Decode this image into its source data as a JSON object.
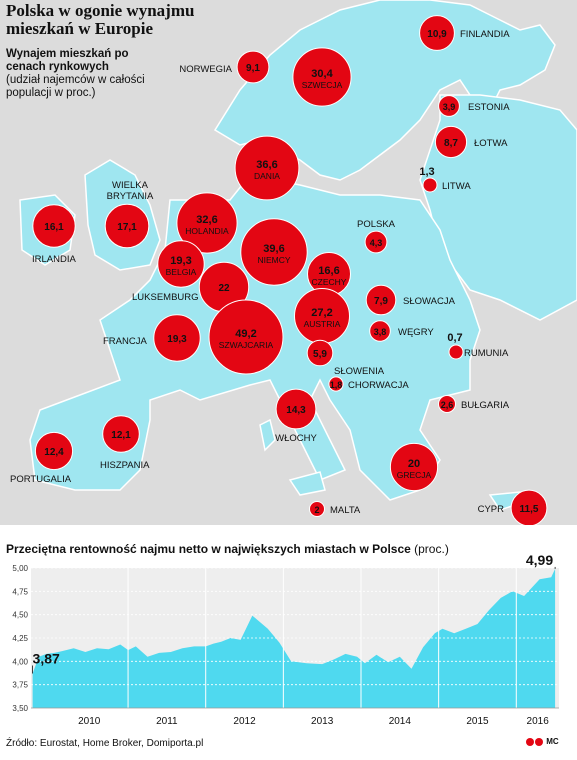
{
  "title": "Polska w ogonie wynajmu mieszkań w Europie",
  "map_chart": {
    "subtitle_bold": "Wynajem mieszkań po cenach rynkowych",
    "subtitle_note": "(udział najemców w całości populacji w proc.)"
  },
  "line_chart": {
    "title": "Przeciętna rentowność najmu netto w największych miastach w Polsce",
    "unit": "(proc.)"
  },
  "source": "Źródło: Eurostat, Home Broker, Domiporta.pl",
  "logo_text": "MC",
  "colors": {
    "bubble": "#e30613",
    "land": "#9fe6f0",
    "sea": "#dcdcdc",
    "area": "#4fd9ef"
  },
  "chart_data": [
    {
      "type": "bubble-map",
      "title": "Polska w ogonie wynajmu mieszkań w Europie",
      "subtitle": "Wynajem mieszkań po cenach rynkowych (udział najemców w całości populacji w proc.)",
      "points": [
        {
          "country": "FINLANDIA",
          "value": "10,9"
        },
        {
          "country": "NORWEGIA",
          "value": "9,1"
        },
        {
          "country": "SZWECJA",
          "value": "30,4"
        },
        {
          "country": "ESTONIA",
          "value": "3,9"
        },
        {
          "country": "ŁOTWA",
          "value": "8,7"
        },
        {
          "country": "DANIA",
          "value": "36,6"
        },
        {
          "country": "LITWA",
          "value": "1,3"
        },
        {
          "country": "IRLANDIA",
          "value": "16,1"
        },
        {
          "country": "WIELKA BRYTANIA",
          "value": "17,1"
        },
        {
          "country": "HOLANDIA",
          "value": "32,6"
        },
        {
          "country": "NIEMCY",
          "value": "39,6"
        },
        {
          "country": "POLSKA",
          "value": "4,3"
        },
        {
          "country": "BELGIA",
          "value": "19,3"
        },
        {
          "country": "LUKSEMBURG",
          "value": "22"
        },
        {
          "country": "CZECHY",
          "value": "16,6"
        },
        {
          "country": "SŁOWACJA",
          "value": "7,9"
        },
        {
          "country": "FRANCJA",
          "value": "19,3"
        },
        {
          "country": "SZWAJCARIA",
          "value": "49,2"
        },
        {
          "country": "AUSTRIA",
          "value": "27,2"
        },
        {
          "country": "WĘGRY",
          "value": "3,8"
        },
        {
          "country": "RUMUNIA",
          "value": "0,7"
        },
        {
          "country": "SŁOWENIA",
          "value": "5,9"
        },
        {
          "country": "CHORWACJA",
          "value": "1,8"
        },
        {
          "country": "BUŁGARIA",
          "value": "2,6"
        },
        {
          "country": "WŁOCHY",
          "value": "14,3"
        },
        {
          "country": "PORTUGALIA",
          "value": "12,4"
        },
        {
          "country": "HISZPANIA",
          "value": "12,1"
        },
        {
          "country": "GRECJA",
          "value": "20"
        },
        {
          "country": "MALTA",
          "value": "2"
        },
        {
          "country": "CYPR",
          "value": "11,5"
        }
      ]
    },
    {
      "type": "area",
      "title": "Przeciętna rentowność najmu netto w największych miastach w Polsce",
      "unit": "(proc.)",
      "x_categories": [
        "2010",
        "2011",
        "2012",
        "2013",
        "2014",
        "2015",
        "2016"
      ],
      "yticks": [
        "3,50",
        "3,75",
        "4,00",
        "4,25",
        "4,50",
        "4,75",
        "5,00"
      ],
      "ylim": [
        3.5,
        5.0
      ],
      "xlim": [
        2009.75,
        2016.55
      ],
      "annotations": [
        {
          "label": "3,87",
          "x": 2009.77,
          "y": 3.87
        },
        {
          "label": "4,99",
          "x": 2016.5,
          "y": 4.99
        }
      ],
      "x": [
        2009.77,
        2009.85,
        2009.95,
        2010.05,
        2010.15,
        2010.3,
        2010.45,
        2010.6,
        2010.75,
        2010.9,
        2011.0,
        2011.1,
        2011.25,
        2011.4,
        2011.55,
        2011.7,
        2011.85,
        2012.0,
        2012.1,
        2012.2,
        2012.32,
        2012.45,
        2012.6,
        2012.8,
        2012.95,
        2013.1,
        2013.3,
        2013.5,
        2013.65,
        2013.8,
        2013.95,
        2014.05,
        2014.2,
        2014.35,
        2014.5,
        2014.65,
        2014.8,
        2014.95,
        2015.05,
        2015.2,
        2015.35,
        2015.5,
        2015.65,
        2015.8,
        2015.95,
        2016.1,
        2016.3,
        2016.45,
        2016.5
      ],
      "values": [
        3.87,
        4.05,
        4.08,
        4.09,
        4.11,
        4.14,
        4.1,
        4.14,
        4.13,
        4.18,
        4.12,
        4.16,
        4.05,
        4.09,
        4.1,
        4.14,
        4.16,
        4.16,
        4.19,
        4.21,
        4.25,
        4.23,
        4.49,
        4.35,
        4.2,
        4.0,
        3.98,
        3.97,
        4.02,
        4.08,
        4.05,
        3.98,
        4.07,
        3.99,
        4.05,
        3.92,
        4.15,
        4.3,
        4.35,
        4.3,
        4.35,
        4.4,
        4.55,
        4.68,
        4.75,
        4.7,
        4.88,
        4.9,
        4.99
      ]
    }
  ]
}
